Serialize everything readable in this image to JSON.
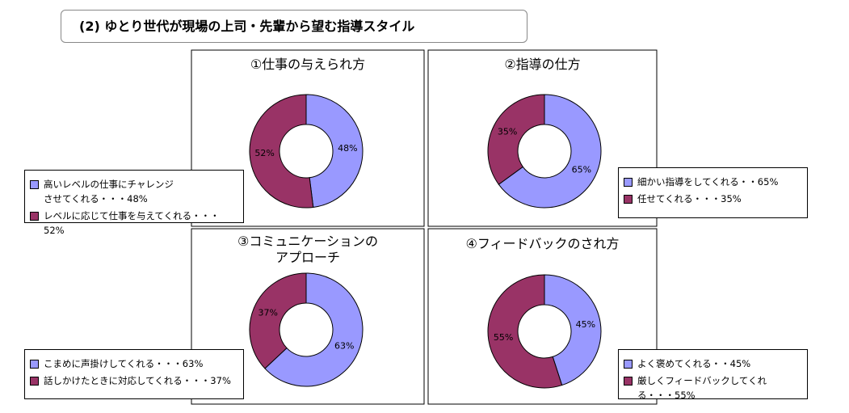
{
  "title": "(2) ゆとり世代が現場の上司・先輩から望む指導スタイル",
  "chart_data": [
    {
      "type": "donut",
      "title": "①仕事の与えられ方",
      "categories": [
        "高いレベルの仕事にチャレンジ\nさせてくれる・・・48%",
        "レベルに応じて仕事を与えてくれる・・・52%"
      ],
      "values": [
        48,
        52
      ],
      "value_labels": [
        "48%",
        "52%"
      ],
      "colors": [
        "#9999ff",
        "#993366"
      ]
    },
    {
      "type": "donut",
      "title": "②指導の仕方",
      "categories": [
        "細かい指導をしてくれる・・65%",
        "任せてくれる・・・35%"
      ],
      "values": [
        65,
        35
      ],
      "value_labels": [
        "65%",
        "35%"
      ],
      "colors": [
        "#9999ff",
        "#993366"
      ]
    },
    {
      "type": "donut",
      "title": "③コミュニケーションの\nアプローチ",
      "categories": [
        "こまめに声掛けしてくれる・・・63%",
        "話しかけたときに対応してくれる・・・37%"
      ],
      "values": [
        63,
        37
      ],
      "value_labels": [
        "63%",
        "37%"
      ],
      "colors": [
        "#9999ff",
        "#993366"
      ]
    },
    {
      "type": "donut",
      "title": "④フィードバックのされ方",
      "categories": [
        "よく褒めてくれる・・45%",
        "厳しくフィードバックしてくれる・・・55%"
      ],
      "values": [
        45,
        55
      ],
      "value_labels": [
        "45%",
        "55%"
      ],
      "colors": [
        "#9999ff",
        "#993366"
      ]
    }
  ]
}
